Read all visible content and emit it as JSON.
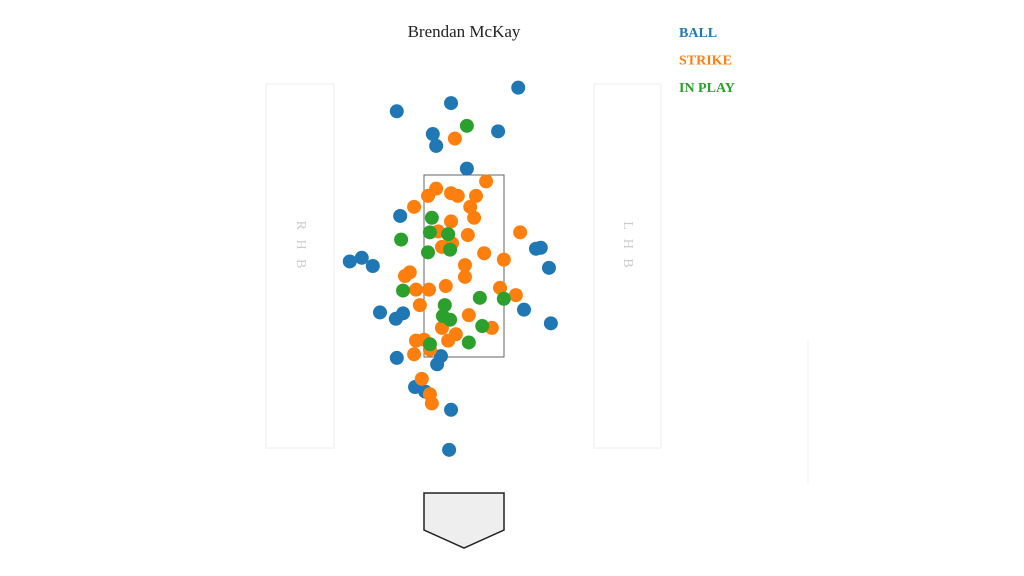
{
  "chart_data": {
    "type": "scatter",
    "title": "Brendan McKay",
    "annotations": [
      "R H B",
      "L H B"
    ],
    "xlim": [
      -4,
      4
    ],
    "ylim": [
      0.25,
      4.55
    ],
    "series": [
      {
        "name": "BALL",
        "color": "#1f77b4",
        "x": [
          1.13,
          -1.4,
          -0.27,
          -0.65,
          0.71,
          -0.58,
          0.06,
          -1.33,
          -2.38,
          -2.13,
          -1.9,
          1.5,
          1.6,
          1.77,
          -1.75,
          -1.42,
          -1.27,
          1.25,
          1.81,
          -1.4,
          -0.48,
          -0.56,
          -1.02,
          -0.81,
          -0.27,
          -0.31
        ],
        "y": [
          4.46,
          4.2,
          4.29,
          3.95,
          3.98,
          3.82,
          3.57,
          3.05,
          2.55,
          2.59,
          2.5,
          2.69,
          2.7,
          2.48,
          1.99,
          1.92,
          1.98,
          2.02,
          1.87,
          1.49,
          1.51,
          1.42,
          1.17,
          1.12,
          0.92,
          0.48
        ]
      },
      {
        "name": "STRIKE",
        "color": "#ff7f0e",
        "x": [
          -0.19,
          0.46,
          -0.58,
          -0.75,
          -0.27,
          -0.13,
          0.25,
          0.13,
          -1.04,
          0.21,
          -0.27,
          -0.54,
          0.08,
          1.17,
          -0.25,
          -0.46,
          0.42,
          0.83,
          0.02,
          -1.13,
          -1.23,
          0.02,
          -0.38,
          -1.0,
          -0.73,
          0.75,
          1.08,
          -0.92,
          0.1,
          -0.46,
          -0.17,
          0.58,
          -1.0,
          -0.83,
          -0.33,
          -1.04,
          -0.71,
          -0.88,
          -0.71,
          -0.67
        ],
        "y": [
          3.9,
          3.43,
          3.35,
          3.27,
          3.3,
          3.27,
          3.27,
          3.15,
          3.15,
          3.03,
          2.99,
          2.88,
          2.84,
          2.87,
          2.75,
          2.71,
          2.64,
          2.57,
          2.51,
          2.43,
          2.39,
          2.38,
          2.28,
          2.24,
          2.24,
          2.26,
          2.18,
          2.07,
          1.96,
          1.82,
          1.75,
          1.82,
          1.68,
          1.69,
          1.68,
          1.53,
          1.58,
          1.26,
          1.09,
          0.99
        ]
      },
      {
        "name": "IN PLAY",
        "color": "#2ca02c",
        "x": [
          0.06,
          -0.67,
          -0.71,
          -0.33,
          -1.31,
          -0.75,
          -0.29,
          -1.27,
          0.33,
          0.83,
          -0.4,
          -0.44,
          -0.29,
          0.38,
          -0.71,
          0.1
        ],
        "y": [
          4.04,
          3.03,
          2.87,
          2.85,
          2.79,
          2.65,
          2.68,
          2.23,
          2.15,
          2.14,
          2.07,
          1.95,
          1.91,
          1.84,
          1.64,
          1.66
        ]
      }
    ]
  }
}
